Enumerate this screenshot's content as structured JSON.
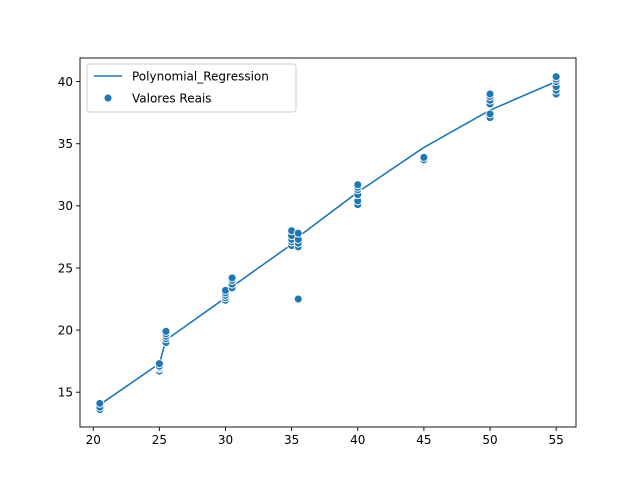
{
  "chart_data": {
    "type": "scatter",
    "title": "",
    "xlabel": "",
    "ylabel": "",
    "xlim": [
      19.0,
      56.5
    ],
    "ylim": [
      12.2,
      41.9
    ],
    "x_ticks": [
      20,
      25,
      30,
      35,
      40,
      45,
      50,
      55
    ],
    "y_ticks": [
      15,
      20,
      25,
      30,
      35,
      40
    ],
    "grid": false,
    "legend": {
      "placement": "top-left",
      "entries": [
        {
          "label": "Polynomial_Regression",
          "kind": "line"
        },
        {
          "label": "Valores Reais",
          "kind": "marker"
        }
      ]
    },
    "colors": {
      "series": "#1f77b4",
      "marker_edge": "#ffffff",
      "axes": "#000000",
      "legend_border": "#cccccc"
    },
    "series": [
      {
        "name": "Polynomial_Regression",
        "kind": "line",
        "x": [
          20.5,
          25.0,
          25.5,
          30.0,
          30.5,
          35.0,
          35.5,
          40.0,
          45.0,
          50.0,
          55.0
        ],
        "y": [
          14.0,
          17.3,
          19.2,
          22.6,
          23.5,
          26.9,
          27.5,
          31.1,
          34.7,
          37.7,
          40.0
        ]
      },
      {
        "name": "Valores Reais",
        "kind": "scatter",
        "x": [
          20.5,
          20.5,
          20.5,
          25.0,
          25.0,
          25.0,
          25.0,
          25.0,
          25.5,
          25.5,
          25.5,
          25.5,
          25.5,
          30.0,
          30.0,
          30.0,
          30.0,
          30.0,
          30.5,
          30.5,
          30.5,
          30.5,
          35.0,
          35.0,
          35.0,
          35.0,
          35.0,
          35.5,
          35.5,
          35.5,
          35.5,
          35.5,
          40.0,
          40.0,
          40.0,
          40.0,
          40.0,
          40.0,
          45.0,
          45.0,
          50.0,
          50.0,
          50.0,
          50.0,
          50.0,
          50.0,
          55.0,
          55.0,
          55.0,
          55.0,
          55.0,
          55.0
        ],
        "y": [
          13.6,
          13.8,
          14.1,
          16.7,
          16.9,
          17.0,
          17.1,
          17.3,
          19.0,
          19.3,
          19.5,
          19.7,
          19.9,
          22.4,
          22.6,
          22.8,
          23.0,
          23.2,
          23.4,
          23.7,
          24.0,
          24.2,
          26.8,
          27.1,
          27.3,
          27.6,
          28.0,
          22.5,
          26.7,
          27.0,
          27.3,
          27.8,
          30.1,
          30.4,
          30.9,
          31.3,
          31.5,
          31.7,
          33.7,
          33.9,
          37.1,
          37.4,
          38.2,
          38.5,
          38.8,
          39.0,
          39.0,
          39.3,
          39.6,
          40.0,
          40.2,
          40.4
        ]
      }
    ]
  }
}
